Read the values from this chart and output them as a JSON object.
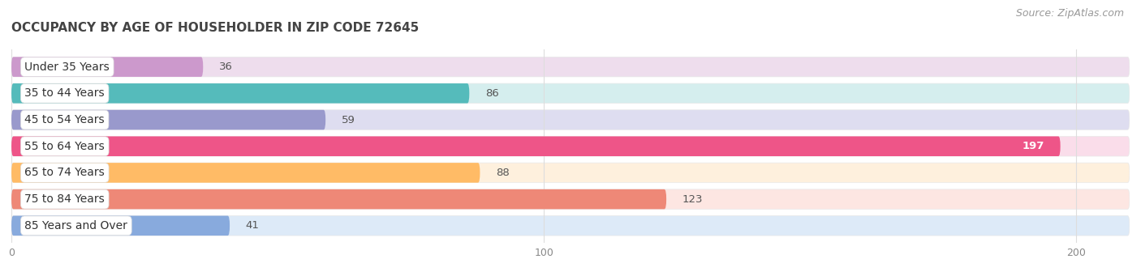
{
  "title": "OCCUPANCY BY AGE OF HOUSEHOLDER IN ZIP CODE 72645",
  "source": "Source: ZipAtlas.com",
  "categories": [
    "Under 35 Years",
    "35 to 44 Years",
    "45 to 54 Years",
    "55 to 64 Years",
    "65 to 74 Years",
    "75 to 84 Years",
    "85 Years and Over"
  ],
  "values": [
    36,
    86,
    59,
    197,
    88,
    123,
    41
  ],
  "bar_colors": [
    "#cc99cc",
    "#55bbbb",
    "#9999cc",
    "#ee5588",
    "#ffbb66",
    "#ee8877",
    "#88aadd"
  ],
  "bar_bg_colors": [
    "#eedded",
    "#d5eeee",
    "#deddf0",
    "#faddea",
    "#fef0dd",
    "#fde6e2",
    "#ddeaf8"
  ],
  "row_sep_color": "#e8e8e8",
  "xlim_max": 210,
  "xticks": [
    0,
    100,
    200
  ],
  "title_fontsize": 11,
  "source_fontsize": 9,
  "label_fontsize": 10,
  "value_fontsize": 9.5,
  "background_color": "#ffffff",
  "bar_height": 0.75,
  "label_bg_color": "#ffffff"
}
